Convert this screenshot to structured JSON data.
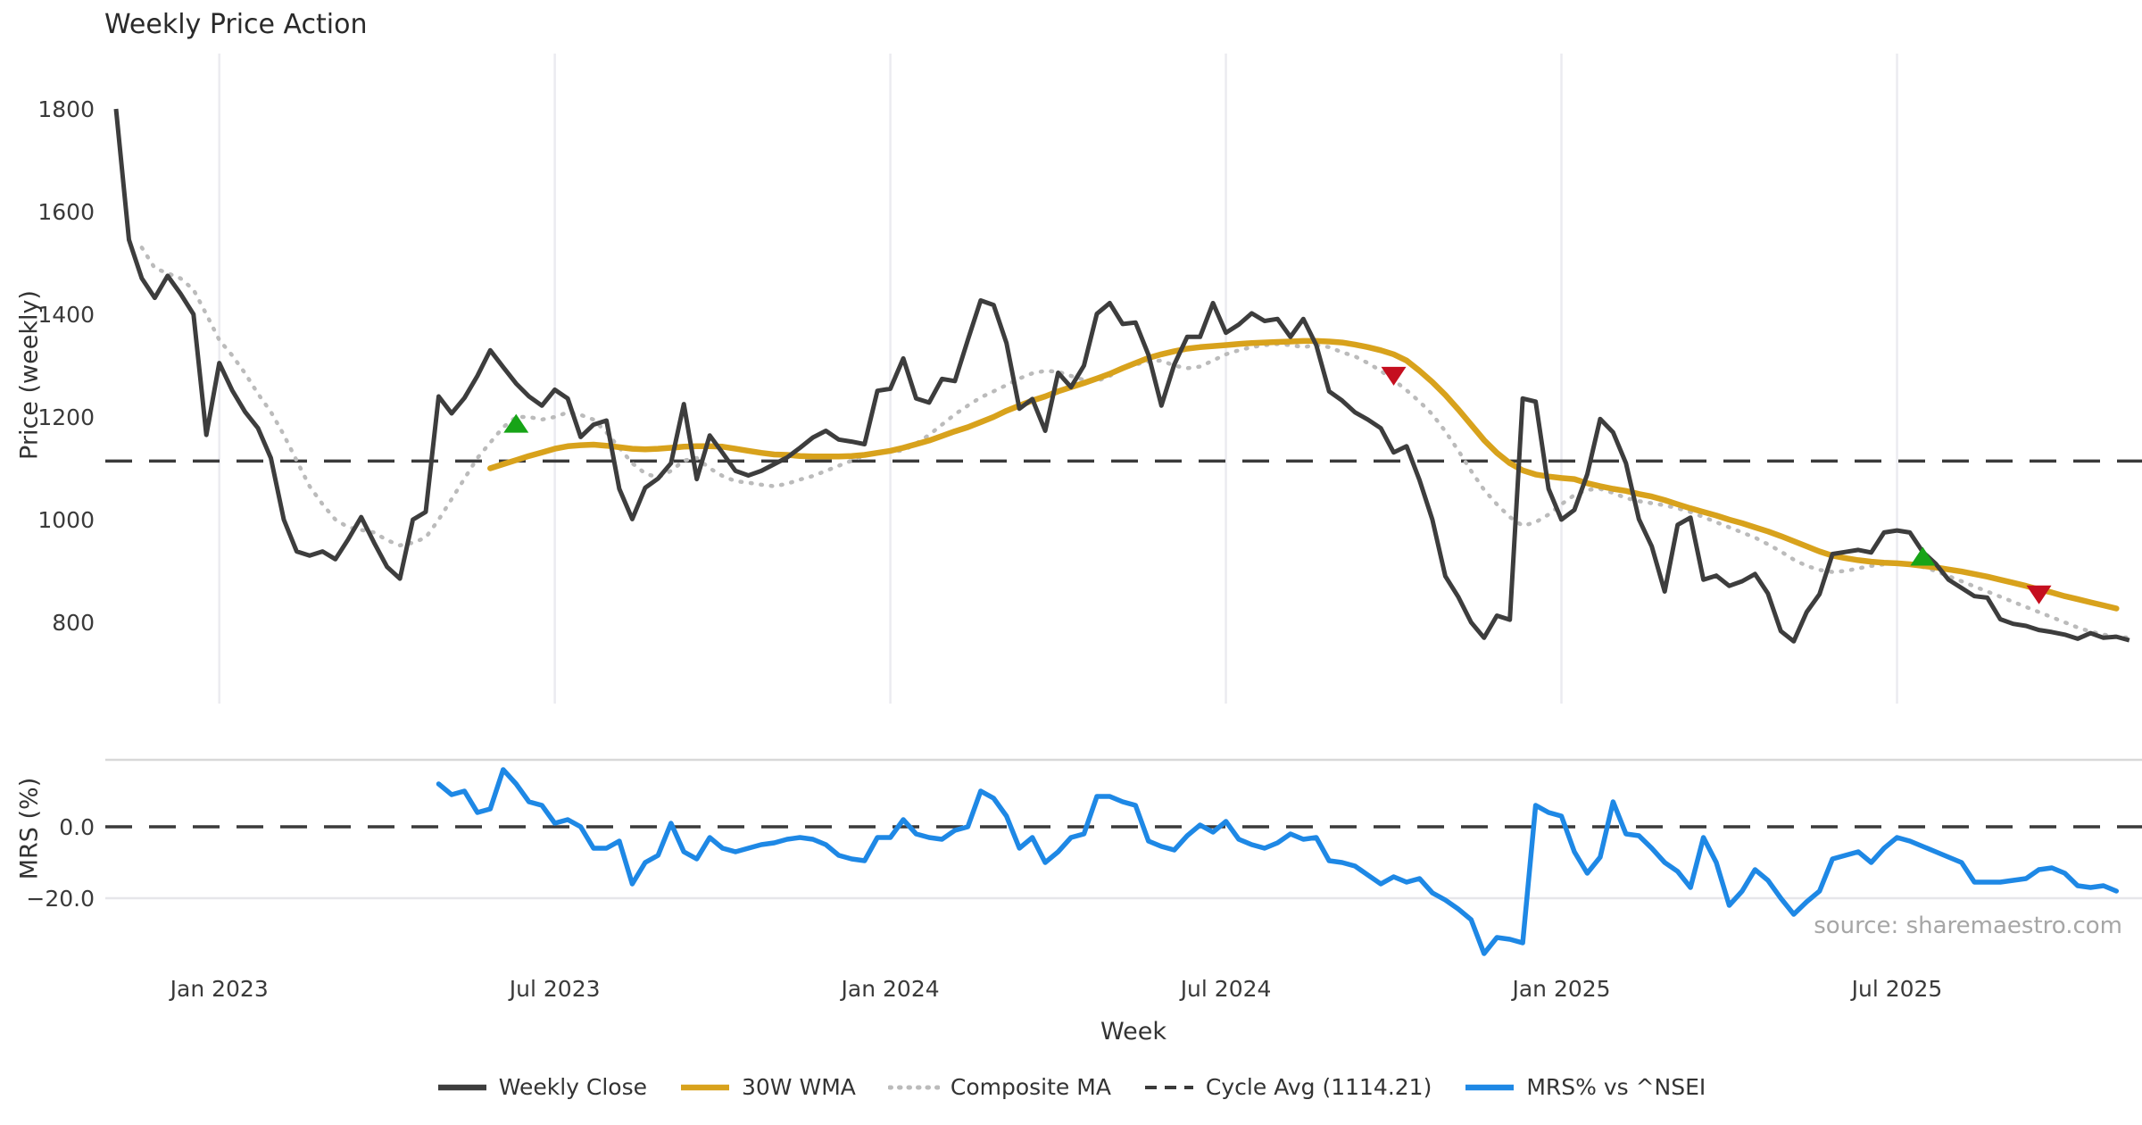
{
  "title": "Weekly Price Action",
  "source_text": "source: sharemaestro.com",
  "axes": {
    "price_ylabel": "Price (weekly)",
    "mrs_ylabel": "MRS (%)",
    "xlabel": "Week",
    "price_tick_labels": [
      "1800",
      "1600",
      "1400",
      "1200",
      "1000",
      "800"
    ],
    "mrs_tick_labels": [
      "0.0",
      "−20.0"
    ],
    "x_tick_labels": [
      "Jan 2023",
      "Jul 2023",
      "Jan 2024",
      "Jul 2024",
      "Jan 2025",
      "Jul 2025"
    ]
  },
  "colors": {
    "close": "#3d3d3d",
    "wma": "#d8a21c",
    "composite": "#bbbbbb",
    "cycle": "#3a3a3a",
    "mrs": "#1e88e5",
    "buy": "#17a417",
    "sell": "#c50f1f",
    "gridline": "#ebebf0",
    "spine": "#d8d8d8",
    "minorline": "#e6e6ea",
    "text": "#3a3a3a",
    "background": "#ffffff"
  },
  "legend": [
    {
      "label": "Weekly Close",
      "style": "solid",
      "color_key": "close"
    },
    {
      "label": "30W WMA",
      "style": "solid",
      "color_key": "wma"
    },
    {
      "label": "Composite MA",
      "style": "dotted",
      "color_key": "composite"
    },
    {
      "label": "Cycle Avg (1114.21)",
      "style": "dashed",
      "color_key": "cycle"
    },
    {
      "label": "MRS% vs ^NSEI",
      "style": "solid",
      "color_key": "mrs"
    }
  ],
  "chart_data": {
    "type": "line",
    "title": "Weekly Price Action",
    "xlabel": "Week",
    "x_unit": "weekly",
    "x_start_date": "2022-11-07",
    "x_step_days": 7,
    "x_tick_weeks": [
      8,
      34,
      60,
      86,
      112,
      138
    ],
    "x_tick_labels": [
      "Jan 2023",
      "Jul 2023",
      "Jan 2024",
      "Jul 2024",
      "Jan 2025",
      "Jul 2025"
    ],
    "grid": "vertical-only-top-panel",
    "legend_position": "bottom-center",
    "panels": [
      {
        "ylabel": "Price (weekly)",
        "ylim": [
          699,
          1864
        ],
        "yticks": [
          1800,
          1600,
          1400,
          1200,
          1000,
          800
        ],
        "cycle_avg": 1114.21,
        "series": [
          {
            "name": "Weekly Close",
            "start_week": 0,
            "values": [
              1800,
              1545,
              1470,
              1432,
              1475,
              1440,
              1400,
              1165,
              1305,
              1252,
              1210,
              1178,
              1120,
              1000,
              938,
              930,
              938,
              923,
              962,
              1005,
              955,
              908,
              885,
              1000,
              1015,
              1240,
              1207,
              1237,
              1280,
              1330,
              1297,
              1265,
              1240,
              1222,
              1253,
              1236,
              1161,
              1185,
              1193,
              1060,
              1001,
              1062,
              1080,
              1110,
              1225,
              1079,
              1164,
              1130,
              1095,
              1086,
              1095,
              1108,
              1121,
              1140,
              1160,
              1173,
              1156,
              1152,
              1147,
              1251,
              1255,
              1314,
              1236,
              1228,
              1274,
              1270,
              1350,
              1427,
              1418,
              1344,
              1216,
              1235,
              1173,
              1286,
              1258,
              1300,
              1401,
              1422,
              1381,
              1384,
              1321,
              1222,
              1302,
              1356,
              1356,
              1422,
              1364,
              1380,
              1402,
              1387,
              1391,
              1356,
              1391,
              1340,
              1250,
              1232,
              1209,
              1195,
              1178,
              1131,
              1143,
              1077,
              1000,
              890,
              850,
              800,
              770,
              813,
              805,
              1236,
              1230,
              1060,
              1000,
              1019,
              1088,
              1196,
              1170,
              1110,
              1001,
              948,
              860,
              990,
              1004,
              883,
              891,
              871,
              880,
              894,
              856,
              783,
              763,
              820,
              855,
              933,
              937,
              941,
              936,
              975,
              979,
              975,
              937,
              914,
              883,
              867,
              851,
              848,
              806,
              797,
              793,
              785,
              781,
              776,
              768,
              779,
              770,
              772,
              765
            ]
          },
          {
            "name": "30W WMA",
            "start_week": 29,
            "values": [
              1100,
              1108,
              1116,
              1124,
              1131,
              1138,
              1143,
              1145,
              1146,
              1144,
              1141,
              1138,
              1137,
              1138,
              1140,
              1142,
              1143,
              1143,
              1142,
              1138,
              1134,
              1130,
              1127,
              1126,
              1124,
              1123,
              1123,
              1123,
              1124,
              1126,
              1130,
              1134,
              1140,
              1147,
              1154,
              1163,
              1172,
              1180,
              1190,
              1200,
              1212,
              1222,
              1232,
              1240,
              1250,
              1258,
              1266,
              1275,
              1284,
              1295,
              1305,
              1315,
              1322,
              1328,
              1333,
              1336,
              1338,
              1340,
              1342,
              1344,
              1345,
              1346,
              1347,
              1348,
              1348,
              1347,
              1345,
              1341,
              1336,
              1330,
              1322,
              1310,
              1290,
              1268,
              1243,
              1215,
              1185,
              1155,
              1130,
              1110,
              1096,
              1088,
              1084,
              1081,
              1079,
              1071,
              1065,
              1060,
              1056,
              1050,
              1045,
              1038,
              1030,
              1022,
              1015,
              1008,
              1000,
              993,
              985,
              977,
              968,
              958,
              948,
              938,
              930,
              925,
              921,
              918,
              916,
              915,
              913,
              910,
              907,
              903,
              899,
              894,
              889,
              883,
              877,
              871,
              864,
              858,
              851,
              845,
              839,
              833,
              827
            ]
          },
          {
            "name": "Composite MA",
            "start_week": 2,
            "values": [
              1530,
              1490,
              1480,
              1470,
              1448,
              1400,
              1350,
              1320,
              1285,
              1245,
              1210,
              1165,
              1115,
              1065,
              1030,
              1000,
              985,
              980,
              975,
              960,
              950,
              955,
              965,
              1000,
              1040,
              1080,
              1120,
              1150,
              1180,
              1200,
              1200,
              1195,
              1200,
              1209,
              1204,
              1195,
              1170,
              1140,
              1110,
              1090,
              1082,
              1095,
              1115,
              1120,
              1100,
              1085,
              1075,
              1072,
              1068,
              1065,
              1070,
              1078,
              1085,
              1095,
              1105,
              1115,
              1125,
              1130,
              1132,
              1135,
              1148,
              1165,
              1185,
              1205,
              1222,
              1238,
              1250,
              1262,
              1275,
              1285,
              1290,
              1288,
              1280,
              1272,
              1270,
              1280,
              1295,
              1302,
              1308,
              1310,
              1300,
              1295,
              1298,
              1310,
              1322,
              1330,
              1336,
              1340,
              1342,
              1340,
              1336,
              1340,
              1336,
              1326,
              1318,
              1305,
              1290,
              1272,
              1252,
              1230,
              1205,
              1172,
              1135,
              1095,
              1058,
              1030,
              1005,
              988,
              995,
              1010,
              1030,
              1048,
              1058,
              1060,
              1052,
              1042,
              1036,
              1032,
              1028,
              1022,
              1015,
              1005,
              995,
              985,
              975,
              965,
              952,
              938,
              922,
              910,
              902,
              898,
              900,
              905,
              910,
              913,
              915,
              913,
              908,
              900,
              890,
              880,
              870,
              860,
              850,
              840,
              830,
              820,
              810,
              800,
              790,
              782,
              776,
              772,
              770
            ]
          }
        ],
        "markers": {
          "buy": [
            {
              "week": 31,
              "price": 1185
            },
            {
              "week": 140,
              "price": 926
            }
          ],
          "sell": [
            {
              "week": 99,
              "price": 1282
            },
            {
              "week": 149,
              "price": 856
            }
          ]
        }
      },
      {
        "ylabel": "MRS (%)",
        "ylim": [
          -37,
          19
        ],
        "yticks": [
          0.0,
          -20.0
        ],
        "zero_line": 0.0,
        "series": [
          {
            "name": "MRS% vs ^NSEI",
            "start_week": 25,
            "values": [
              12,
              9,
              10,
              4,
              5,
              16,
              12,
              7,
              6,
              1,
              2,
              0,
              -6,
              -6,
              -4,
              -16,
              -10,
              -8,
              1,
              -7,
              -9,
              -3,
              -6,
              -7,
              -6,
              -5,
              -4.5,
              -3.5,
              -3,
              -3.5,
              -5,
              -8,
              -9,
              -9.5,
              -3,
              -3,
              2,
              -2,
              -3,
              -3.5,
              -1,
              0,
              10,
              8,
              3,
              -6,
              -3,
              -10,
              -7,
              -3,
              -2,
              8.5,
              8.5,
              7,
              6,
              -4,
              -5.5,
              -6.5,
              -2.5,
              0.5,
              -1.5,
              1.5,
              -3.5,
              -5,
              -6,
              -4.5,
              -2,
              -3.5,
              -3,
              -9.5,
              -10,
              -11,
              -13.5,
              -16,
              -14,
              -15.5,
              -14.5,
              -18.5,
              -20.5,
              -23,
              -26,
              -35.5,
              -31,
              -31.5,
              -32.5,
              6,
              4,
              3,
              -7,
              -13,
              -8.5,
              7,
              -2,
              -2.5,
              -6,
              -10,
              -12.5,
              -17,
              -3,
              -10,
              -22,
              -18,
              -12,
              -15,
              -20,
              -24.5,
              -21,
              -18,
              -9,
              -8,
              -7,
              -10,
              -6,
              -3,
              -4,
              -5.5,
              -7,
              -8.5,
              -10,
              -15.5,
              -15.5,
              -15.5,
              -15,
              -14.5,
              -12,
              -11.5,
              -13,
              -16.5,
              -17,
              -16.5,
              -18
            ]
          }
        ]
      }
    ]
  }
}
